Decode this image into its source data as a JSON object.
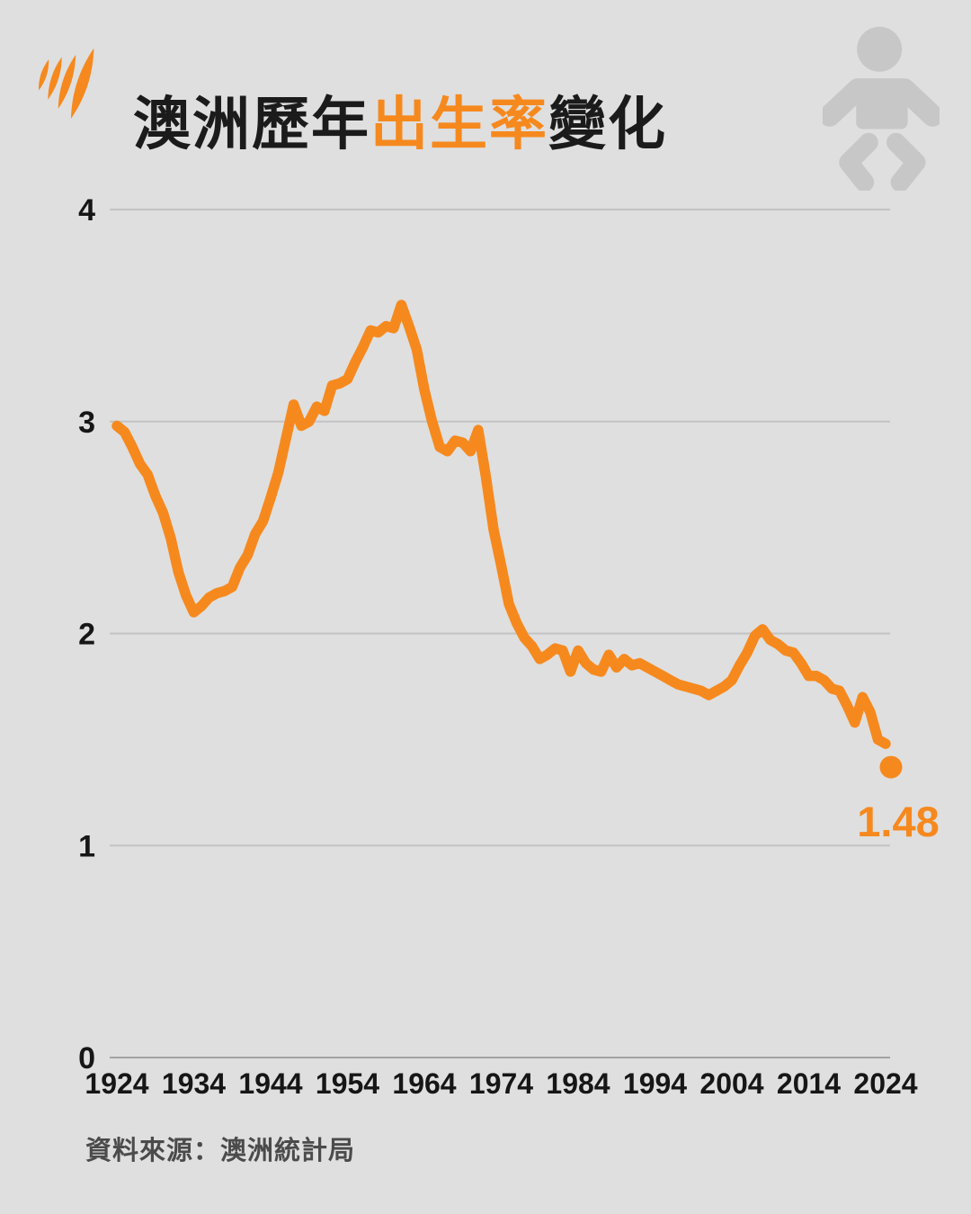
{
  "colors": {
    "background": "#dfdfdf",
    "accent_orange": "#f6891e",
    "title_black": "#1b1b1b",
    "source_gray": "#4b4b4b",
    "icon_gray": "#c7c7c7",
    "gridline_gray": "#c3c3c3",
    "axis_gray": "#a3a3a3"
  },
  "header": {
    "title_part1": "澳洲歷年",
    "title_highlight": "出生率",
    "title_part2": "變化",
    "logo_icon": "sbs-logo",
    "corner_icon": "baby-icon"
  },
  "chart_data": {
    "type": "line",
    "title": "澳洲歷年出生率變化",
    "xlabel": "",
    "ylabel": "",
    "xlim": [
      1924,
      2024
    ],
    "ylim": [
      0,
      4
    ],
    "x_ticks": [
      1924,
      1934,
      1944,
      1954,
      1964,
      1974,
      1984,
      1994,
      2004,
      2014,
      2024
    ],
    "y_ticks": [
      0,
      1,
      2,
      3,
      4
    ],
    "grid": "horizontal",
    "legend": "none",
    "line_color": "#f6891e",
    "x": [
      1924,
      1925,
      1926,
      1927,
      1928,
      1929,
      1930,
      1931,
      1932,
      1933,
      1934,
      1935,
      1936,
      1937,
      1938,
      1939,
      1940,
      1941,
      1942,
      1943,
      1944,
      1945,
      1946,
      1947,
      1948,
      1949,
      1950,
      1951,
      1952,
      1953,
      1954,
      1955,
      1956,
      1957,
      1958,
      1959,
      1960,
      1961,
      1962,
      1963,
      1964,
      1965,
      1966,
      1967,
      1968,
      1969,
      1970,
      1971,
      1972,
      1973,
      1974,
      1975,
      1976,
      1977,
      1978,
      1979,
      1980,
      1981,
      1982,
      1983,
      1984,
      1985,
      1986,
      1987,
      1988,
      1989,
      1990,
      1991,
      1992,
      1993,
      1994,
      1995,
      1996,
      1997,
      1998,
      1999,
      2000,
      2001,
      2002,
      2003,
      2004,
      2005,
      2006,
      2007,
      2008,
      2009,
      2010,
      2011,
      2012,
      2013,
      2014,
      2015,
      2016,
      2017,
      2018,
      2019,
      2020,
      2021,
      2022,
      2023,
      2024
    ],
    "series": [
      {
        "name": "出生率",
        "values": [
          2.98,
          2.95,
          2.88,
          2.8,
          2.75,
          2.65,
          2.57,
          2.45,
          2.29,
          2.18,
          2.1,
          2.13,
          2.17,
          2.19,
          2.2,
          2.22,
          2.31,
          2.37,
          2.47,
          2.53,
          2.64,
          2.76,
          2.92,
          3.08,
          2.98,
          3.0,
          3.07,
          3.05,
          3.17,
          3.18,
          3.2,
          3.28,
          3.35,
          3.43,
          3.42,
          3.45,
          3.44,
          3.55,
          3.45,
          3.34,
          3.15,
          3.0,
          2.88,
          2.86,
          2.91,
          2.9,
          2.86,
          2.96,
          2.74,
          2.49,
          2.32,
          2.14,
          2.05,
          1.98,
          1.94,
          1.88,
          1.9,
          1.93,
          1.92,
          1.82,
          1.92,
          1.86,
          1.83,
          1.82,
          1.9,
          1.84,
          1.88,
          1.85,
          1.86,
          1.84,
          1.82,
          1.8,
          1.78,
          1.76,
          1.75,
          1.74,
          1.73,
          1.71,
          1.73,
          1.75,
          1.78,
          1.85,
          1.91,
          1.99,
          2.02,
          1.97,
          1.95,
          1.92,
          1.91,
          1.86,
          1.8,
          1.8,
          1.78,
          1.74,
          1.73,
          1.66,
          1.58,
          1.7,
          1.63,
          1.5,
          1.48
        ]
      }
    ],
    "end_point": {
      "year": 2024,
      "value": 1.48,
      "label": "1.48"
    }
  },
  "footer": {
    "source": "資料來源：澳洲統計局"
  }
}
